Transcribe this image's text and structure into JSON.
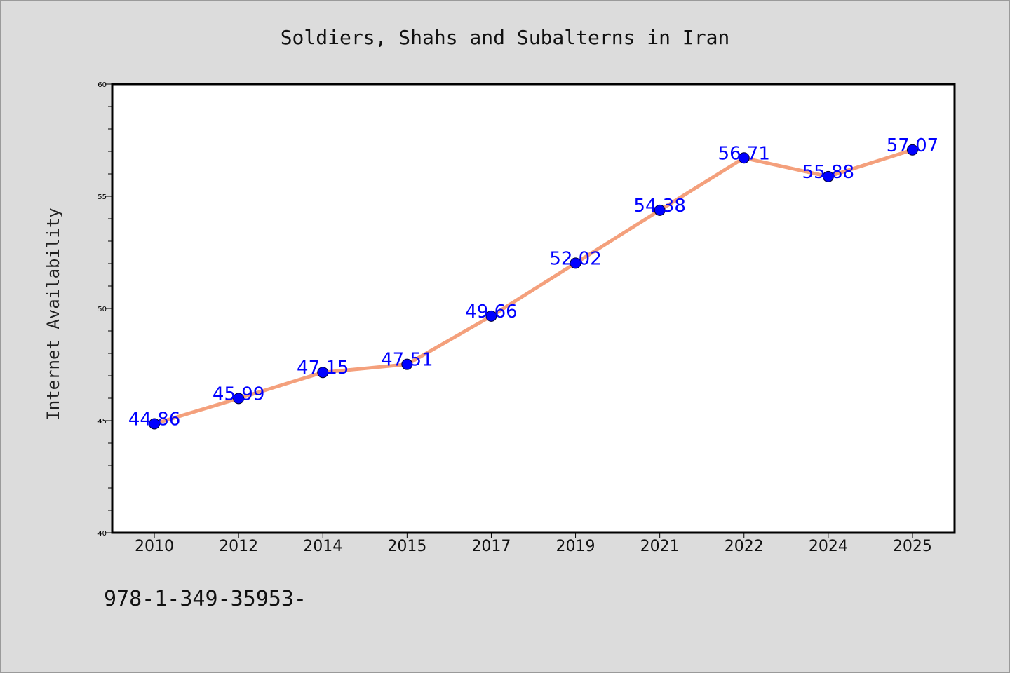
{
  "chart_data": {
    "type": "line",
    "title": "Soldiers, Shahs and Subalterns in Iran",
    "xlabel": "",
    "ylabel": "Internet Availability",
    "categories": [
      "2010",
      "2012",
      "2014",
      "2015",
      "2017",
      "2019",
      "2021",
      "2022",
      "2024",
      "2025"
    ],
    "series": [
      {
        "values": [
          44.86,
          45.99,
          47.15,
          47.51,
          49.66,
          52.02,
          54.38,
          56.71,
          55.88,
          57.07
        ],
        "data_labels": [
          "44.86",
          "45.99",
          "47.15",
          "47.51",
          "49.66",
          "52.02",
          "54.38",
          "56.71",
          "55.88",
          "57.07"
        ]
      }
    ],
    "ylim": [
      40,
      60
    ],
    "yticks": [
      "40",
      "45",
      "50",
      "55",
      "60"
    ],
    "grid": false,
    "legend": "none",
    "colors": {
      "line": "#f4a07c",
      "marker": "#0000ff",
      "data_label": "#0000ff",
      "background": "#dcdcdc",
      "plot_background": "#ffffff"
    }
  },
  "footnote": "978-1-349-35953-"
}
